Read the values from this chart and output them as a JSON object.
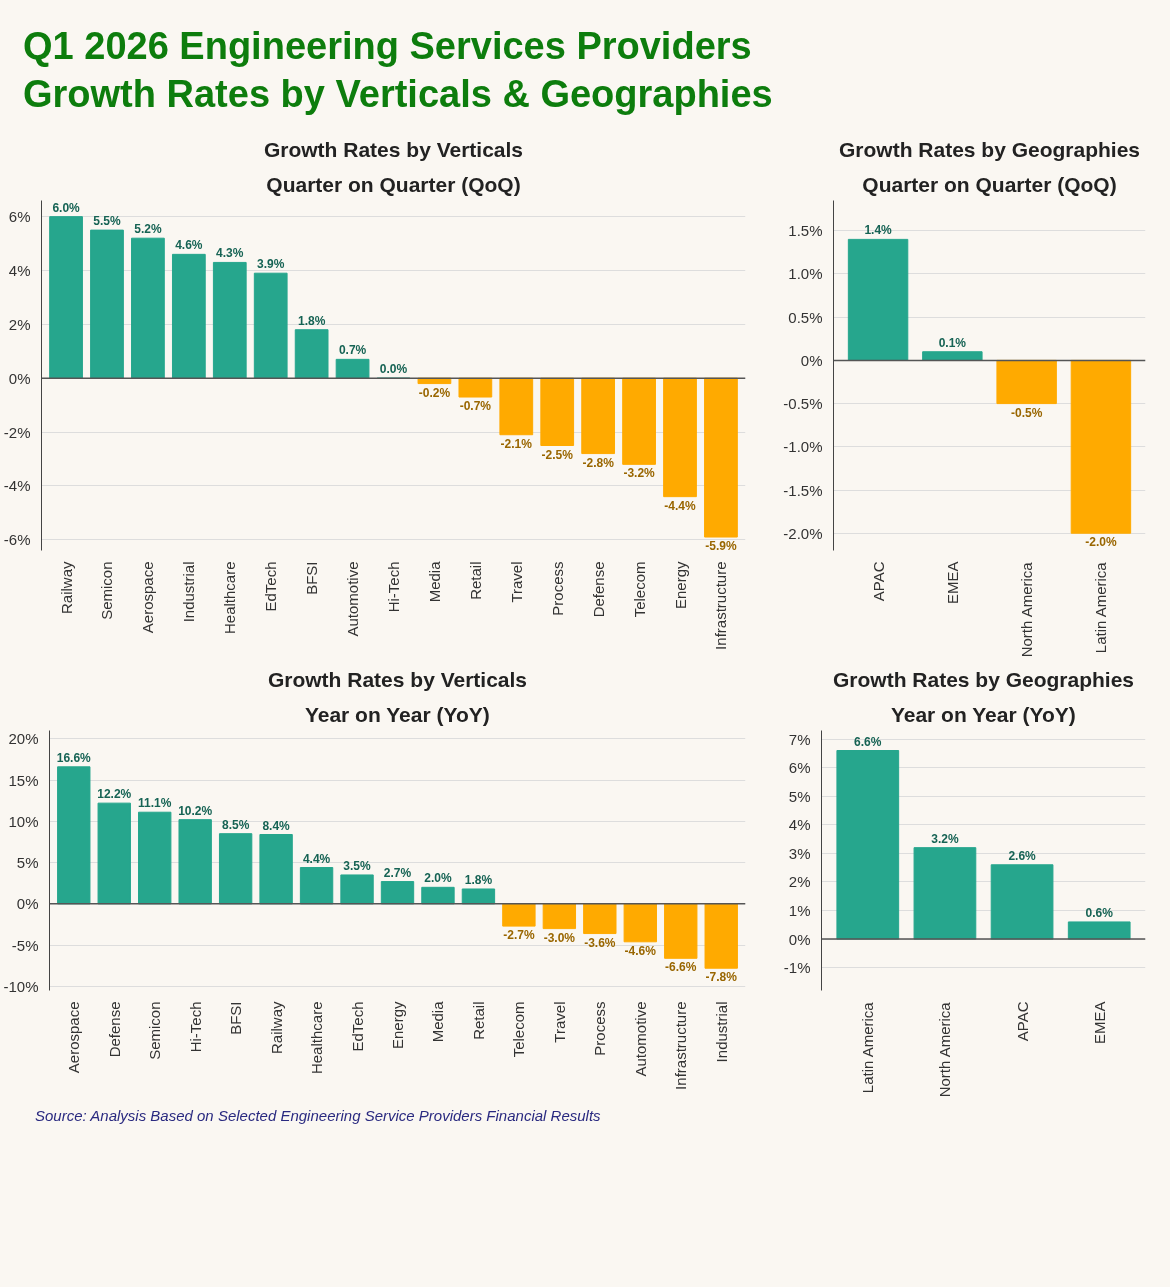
{
  "chart_data": [
    {
      "type": "bar",
      "title": "Growth Rates by Verticals",
      "subtitle": "Quarter on Quarter (QoQ)",
      "annotations": [
        "Q1 2026 Engineering Services Providers Growth Rates by Verticals & Geographies"
      ],
      "categories": [
        "Railway",
        "Semicon",
        "Aerospace",
        "Industrial",
        "Healthcare",
        "EdTech",
        "BFSI",
        "Automotive",
        "Hi-Tech",
        "Media",
        "Retail",
        "Travel",
        "Process",
        "Defense",
        "Telecom",
        "Energy",
        "Infrastructure"
      ],
      "values": [
        6.0,
        5.5,
        5.2,
        4.6,
        4.3,
        3.9,
        1.8,
        0.7,
        0.0,
        -0.2,
        -0.7,
        -2.1,
        -2.5,
        -2.8,
        -3.2,
        -4.4,
        -5.9
      ],
      "value_labels": [
        "6.0%",
        "5.5%",
        "5.2%",
        "4.6%",
        "4.3%",
        "3.9%",
        "1.8%",
        "0.7%",
        "0.0%",
        "-0.2%",
        "-0.7%",
        "-2.1%",
        "-2.5%",
        "-2.8%",
        "-3.2%",
        "-4.4%",
        "-5.9%"
      ],
      "colors": [
        "#26a68d",
        "#26a68d",
        "#26a68d",
        "#26a68d",
        "#26a68d",
        "#26a68d",
        "#26a68d",
        "#26a68d",
        "#26a68d",
        "#ffaa00",
        "#ffaa00",
        "#ffaa00",
        "#ffaa00",
        "#ffaa00",
        "#ffaa00",
        "#ffaa00",
        "#ffaa00"
      ],
      "ylim": [
        -6.4,
        6.6
      ],
      "yticks": [
        {
          "value": -6,
          "label": "-6%"
        },
        {
          "value": -4,
          "label": "-4%"
        },
        {
          "value": -2,
          "label": "-2%"
        },
        {
          "value": 0,
          "label": "0%"
        },
        {
          "value": 2,
          "label": "2%"
        },
        {
          "value": 4,
          "label": "4%"
        },
        {
          "value": 6,
          "label": "6%"
        }
      ],
      "grid": "y"
    },
    {
      "type": "bar",
      "title": "Growth Rates by Geographies",
      "subtitle": "Quarter on Quarter (QoQ)",
      "categories": [
        "APAC",
        "EMEA",
        "North America",
        "Latin America"
      ],
      "values": [
        1.4,
        0.1,
        -0.5,
        -2.0
      ],
      "value_labels": [
        "1.4%",
        "0.1%",
        "-0.5%",
        "-2.0%"
      ],
      "colors": [
        "#26a68d",
        "#26a68d",
        "#ffaa00",
        "#ffaa00"
      ],
      "ylim": [
        -2.2,
        1.85
      ],
      "yticks": [
        {
          "value": -2,
          "label": "-2.0%"
        },
        {
          "value": -1.5,
          "label": "-1.5%"
        },
        {
          "value": -1,
          "label": "-1.0%"
        },
        {
          "value": -0.5,
          "label": "-0.5%"
        },
        {
          "value": 0,
          "label": "0%"
        },
        {
          "value": 0.5,
          "label": "0.5%"
        },
        {
          "value": 1,
          "label": "1.0%"
        },
        {
          "value": 1.5,
          "label": "1.5%"
        }
      ],
      "grid": "y"
    },
    {
      "type": "bar",
      "title": "Growth Rates by Verticals",
      "subtitle": "Year on Year (YoY)",
      "annotations": [
        "Source: Analysis Based on Selected Engineering Service Providers Financial Results"
      ],
      "categories": [
        "Aerospace",
        "Defense",
        "Semicon",
        "Hi-Tech",
        "BFSI",
        "Railway",
        "Healthcare",
        "EdTech",
        "Energy",
        "Media",
        "Retail",
        "Telecom",
        "Travel",
        "Process",
        "Automotive",
        "Infrastructure",
        "Industrial"
      ],
      "values": [
        16.6,
        12.2,
        11.1,
        10.2,
        8.5,
        8.4,
        4.4,
        3.5,
        2.7,
        2.0,
        1.8,
        -2.7,
        -3.0,
        -3.6,
        -4.6,
        -6.6,
        -7.8
      ],
      "value_labels": [
        "16.6%",
        "12.2%",
        "11.1%",
        "10.2%",
        "8.5%",
        "8.4%",
        "4.4%",
        "3.5%",
        "2.7%",
        "2.0%",
        "1.8%",
        "-2.7%",
        "-3.0%",
        "-3.6%",
        "-4.6%",
        "-6.6%",
        "-7.8%"
      ],
      "colors": [
        "#26a68d",
        "#26a68d",
        "#26a68d",
        "#26a68d",
        "#26a68d",
        "#26a68d",
        "#26a68d",
        "#26a68d",
        "#26a68d",
        "#26a68d",
        "#26a68d",
        "#ffaa00",
        "#ffaa00",
        "#ffaa00",
        "#ffaa00",
        "#ffaa00",
        "#ffaa00"
      ],
      "ylim": [
        -10.5,
        21
      ],
      "yticks": [
        {
          "value": -10,
          "label": "-10%"
        },
        {
          "value": -5,
          "label": "-5%"
        },
        {
          "value": 0,
          "label": "0%"
        },
        {
          "value": 5,
          "label": "5%"
        },
        {
          "value": 10,
          "label": "10%"
        },
        {
          "value": 15,
          "label": "15%"
        },
        {
          "value": 20,
          "label": "20%"
        }
      ],
      "grid": "y"
    },
    {
      "type": "bar",
      "title": "Growth Rates by Geographies",
      "subtitle": "Year on Year (YoY)",
      "categories": [
        "Latin America",
        "North America",
        "APAC",
        "EMEA"
      ],
      "values": [
        6.6,
        3.2,
        2.6,
        0.6
      ],
      "value_labels": [
        "6.6%",
        "3.2%",
        "2.6%",
        "0.6%"
      ],
      "colors": [
        "#26a68d",
        "#26a68d",
        "#26a68d",
        "#26a68d"
      ],
      "ylim": [
        -1.8,
        7.3
      ],
      "yticks": [
        {
          "value": -1,
          "label": "-1%"
        },
        {
          "value": 0,
          "label": "0%"
        },
        {
          "value": 1,
          "label": "1%"
        },
        {
          "value": 2,
          "label": "2%"
        },
        {
          "value": 3,
          "label": "3%"
        },
        {
          "value": 4,
          "label": "4%"
        },
        {
          "value": 5,
          "label": "5%"
        },
        {
          "value": 6,
          "label": "6%"
        },
        {
          "value": 7,
          "label": "7%"
        }
      ],
      "grid": "y"
    }
  ]
}
